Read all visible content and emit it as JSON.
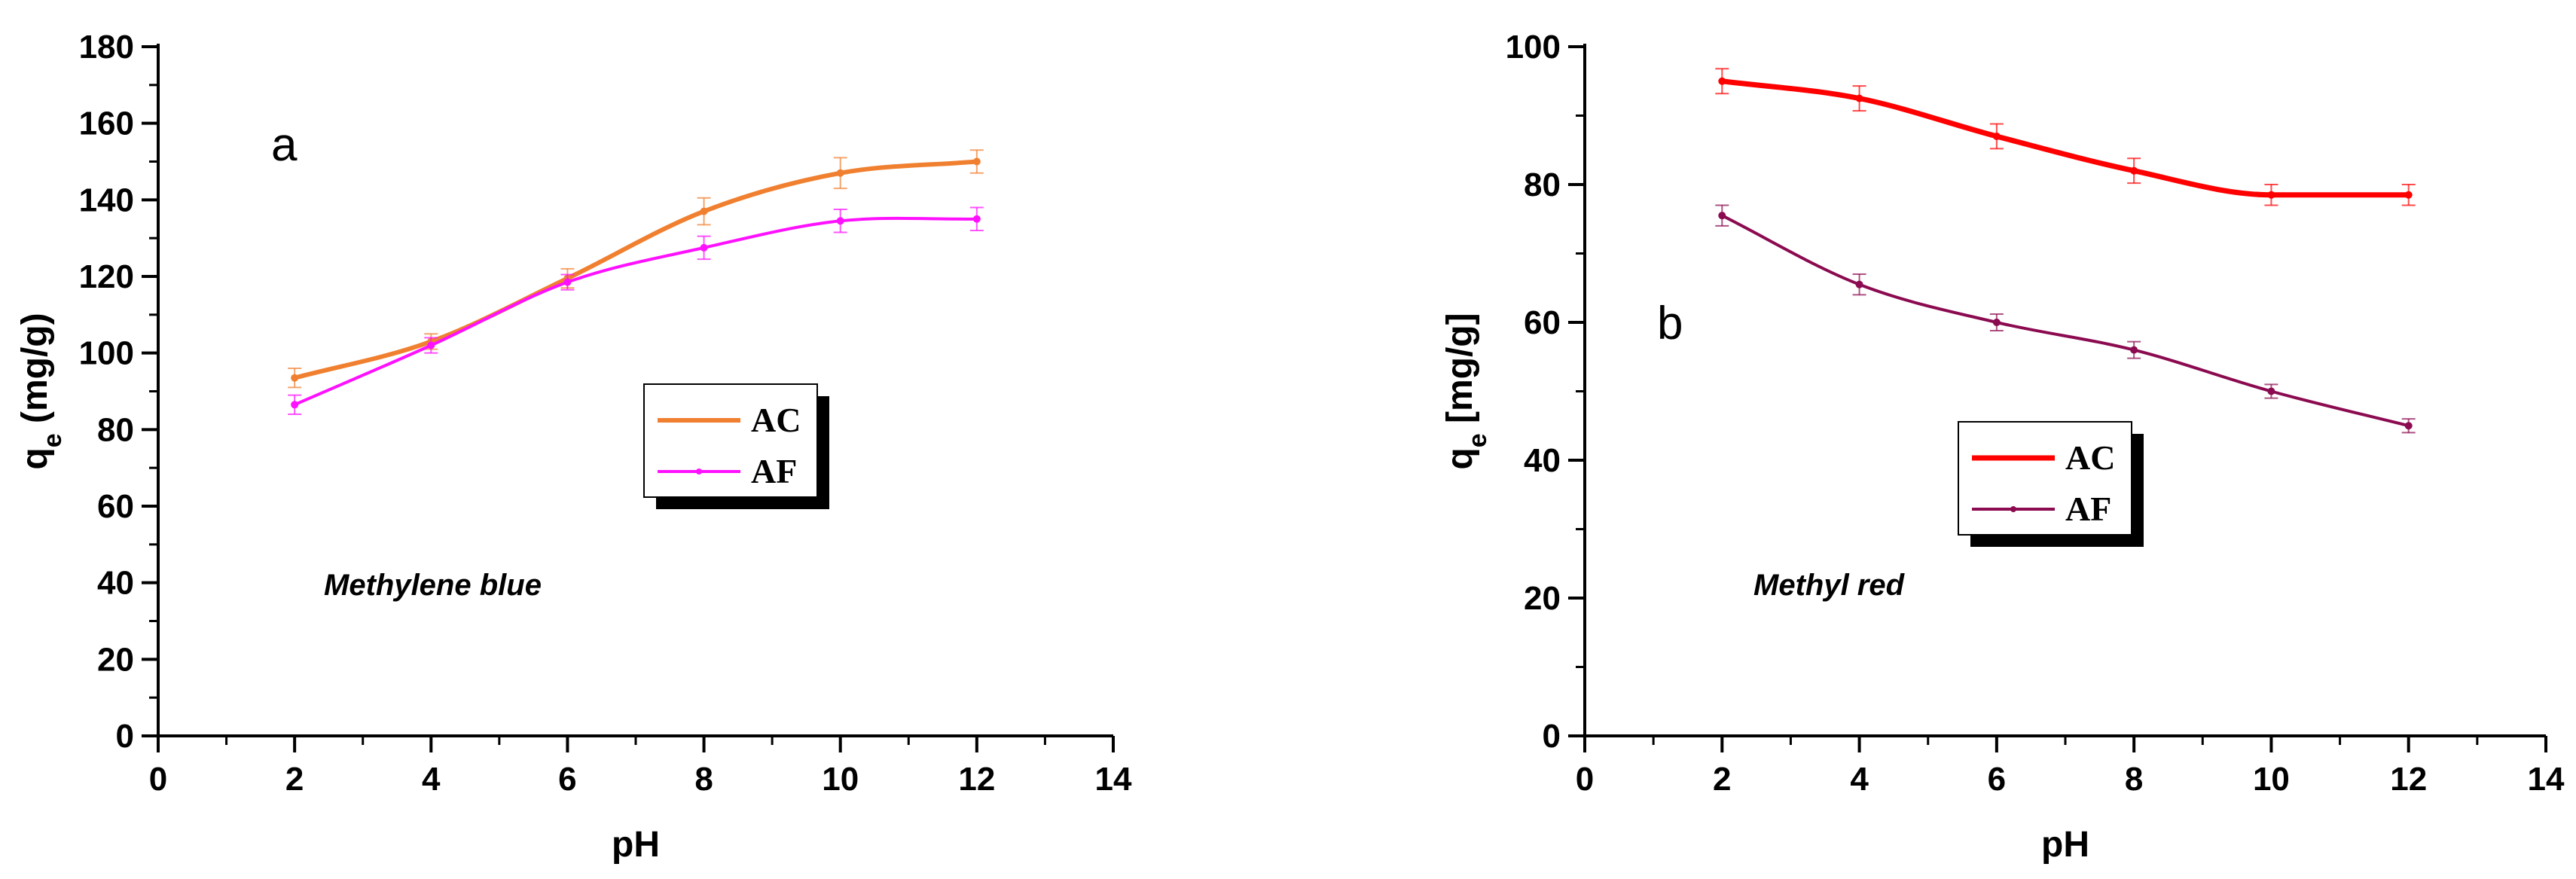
{
  "chart_data": [
    {
      "type": "line",
      "panel_label": "a",
      "annotation": "Methylene blue",
      "xlabel": "pH",
      "ylabel": {
        "main": "q",
        "sub": "e",
        "rest": " (mg/g)"
      },
      "xlim": [
        0,
        14
      ],
      "ylim": [
        0,
        180
      ],
      "xticks": [
        0,
        2,
        4,
        6,
        8,
        10,
        12,
        14
      ],
      "yticks": [
        0,
        20,
        40,
        60,
        80,
        100,
        120,
        140,
        160,
        180
      ],
      "grid": false,
      "legend_position": "center",
      "series": [
        {
          "name": "AC",
          "color": "#f08030",
          "x": [
            2,
            4,
            6,
            8,
            10,
            12
          ],
          "y": [
            93.5,
            103,
            119.5,
            137,
            147,
            150
          ],
          "error": [
            2.5,
            2,
            2.5,
            3.5,
            4,
            3
          ]
        },
        {
          "name": "AF",
          "color": "#ff10ff",
          "x": [
            2,
            4,
            6,
            8,
            10,
            12
          ],
          "y": [
            86.5,
            102,
            118.5,
            127.5,
            134.5,
            135
          ],
          "error": [
            2.5,
            2,
            2,
            3,
            3,
            3
          ]
        }
      ]
    },
    {
      "type": "line",
      "panel_label": "b",
      "annotation": "Methyl red",
      "xlabel": "pH",
      "ylabel": {
        "main": "q",
        "sub": "e",
        "rest": " [mg/g]"
      },
      "xlim": [
        0,
        14
      ],
      "ylim": [
        0,
        100
      ],
      "xticks": [
        0,
        2,
        4,
        6,
        8,
        10,
        12,
        14
      ],
      "yticks": [
        0,
        20,
        40,
        60,
        80,
        100
      ],
      "grid": false,
      "legend_position": "lower-center",
      "series": [
        {
          "name": "AC",
          "color": "#ff0000",
          "x": [
            2,
            4,
            6,
            8,
            10,
            12
          ],
          "y": [
            95,
            92.5,
            87,
            82,
            78.5,
            78.5
          ],
          "error": [
            1.8,
            1.8,
            1.8,
            1.8,
            1.5,
            1.5
          ]
        },
        {
          "name": "AF",
          "color": "#8b0a50",
          "x": [
            2,
            4,
            6,
            8,
            10,
            12
          ],
          "y": [
            75.5,
            65.5,
            60,
            56,
            50,
            45
          ],
          "error": [
            1.5,
            1.5,
            1.2,
            1.2,
            1,
            1
          ]
        }
      ]
    }
  ]
}
